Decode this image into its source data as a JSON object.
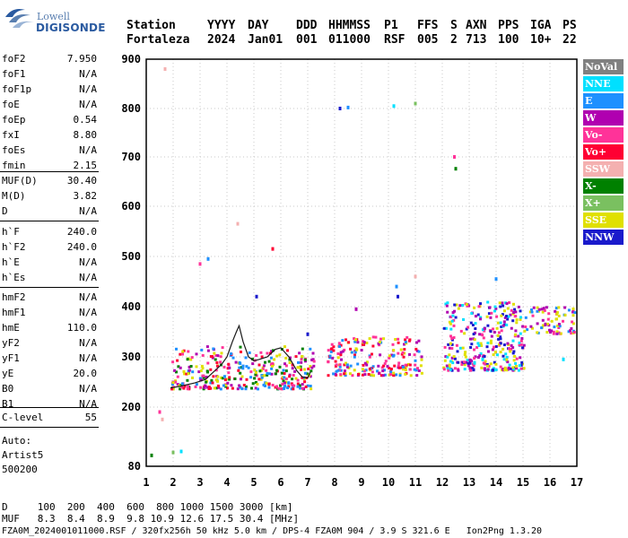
{
  "logo": {
    "top": "Lowell",
    "bottom": "DIGISONDE"
  },
  "header": {
    "row1": [
      "Station",
      "YYYY",
      "DAY",
      "DDD",
      "HHMMSS",
      "P1",
      "FFS",
      "S",
      "AXN",
      "PPS",
      "IGA",
      "PS"
    ],
    "row2": [
      "Fortaleza",
      "2024",
      "Jan01",
      "001",
      "011000",
      "RSF",
      "005",
      "2",
      "713",
      "100",
      "10+",
      "22"
    ]
  },
  "params": {
    "group1": [
      {
        "label": "foF2",
        "value": "7.950"
      },
      {
        "label": "foF1",
        "value": "N/A"
      },
      {
        "label": "foF1p",
        "value": "N/A"
      },
      {
        "label": "foE",
        "value": "N/A"
      },
      {
        "label": "foEp",
        "value": "0.54"
      },
      {
        "label": "fxI",
        "value": "8.80"
      },
      {
        "label": "foEs",
        "value": "N/A"
      },
      {
        "label": "fmin",
        "value": "2.15"
      }
    ],
    "group2": [
      {
        "label": "MUF(D)",
        "value": "30.40"
      },
      {
        "label": "M(D)",
        "value": "3.82"
      },
      {
        "label": "D",
        "value": "N/A"
      }
    ],
    "group3": [
      {
        "label": "h`F",
        "value": "240.0"
      },
      {
        "label": "h`F2",
        "value": "240.0"
      },
      {
        "label": "h`E",
        "value": "N/A"
      },
      {
        "label": "h`Es",
        "value": "N/A"
      }
    ],
    "group4": [
      {
        "label": "hmF2",
        "value": "N/A"
      },
      {
        "label": "hmF1",
        "value": "N/A"
      },
      {
        "label": "hmE",
        "value": "110.0"
      },
      {
        "label": "yF2",
        "value": "N/A"
      },
      {
        "label": "yF1",
        "value": "N/A"
      },
      {
        "label": "yE",
        "value": "20.0"
      },
      {
        "label": "B0",
        "value": "N/A"
      },
      {
        "label": "B1",
        "value": "N/A"
      }
    ],
    "clevel": {
      "label": "C-level",
      "value": "55"
    },
    "auto_lines": [
      "Auto:",
      "Artist5",
      "500200"
    ]
  },
  "legend": [
    {
      "label": "NoVal",
      "color": "#808080"
    },
    {
      "label": "NNE",
      "color": "#00e0ff"
    },
    {
      "label": "E",
      "color": "#1e90ff"
    },
    {
      "label": "W",
      "color": "#b000b0"
    },
    {
      "label": "Vo-",
      "color": "#ff3399"
    },
    {
      "label": "Vo+",
      "color": "#ff0033"
    },
    {
      "label": "SSW",
      "color": "#f4b0b0"
    },
    {
      "label": "X-",
      "color": "#008000"
    },
    {
      "label": "X+",
      "color": "#7ac060"
    },
    {
      "label": "SSE",
      "color": "#e0e000"
    },
    {
      "label": "NNW",
      "color": "#1a1acc"
    }
  ],
  "bottom": {
    "d_line": "D     100  200  400  600  800 1000 1500 3000 [km]",
    "muf_line": "MUF   8.3  8.4  8.9  9.8 10.9 12.6 17.5 30.4 [MHz]",
    "file_line": "FZA0M_2024001011000.RSF / 320fx256h 50 kHz 5.0 km / DPS-4 FZA0M 904 / 3.9 S 321.6 E   Ion2Png 1.3.20"
  },
  "chart_data": {
    "type": "scatter",
    "title": "",
    "xlabel": "",
    "ylabel": "",
    "xlim": [
      1,
      17
    ],
    "ylim": [
      80,
      900
    ],
    "x_ticks": [
      "1",
      "2",
      "3",
      "4",
      "5",
      "6",
      "7",
      "8",
      "9",
      "10",
      "11",
      "12",
      "13",
      "14",
      "15",
      "16",
      "17"
    ],
    "y_ticks": [
      "80",
      "200",
      "300",
      "400",
      "500",
      "600",
      "700",
      "800",
      "900"
    ],
    "grid": true,
    "legend_position": "right",
    "trace": [
      [
        1.9,
        238
      ],
      [
        2.3,
        242
      ],
      [
        2.8,
        248
      ],
      [
        3.2,
        255
      ],
      [
        3.5,
        270
      ],
      [
        3.8,
        285
      ],
      [
        4.0,
        300
      ],
      [
        4.2,
        330
      ],
      [
        4.35,
        350
      ],
      [
        4.45,
        362
      ],
      [
        4.6,
        330
      ],
      [
        4.8,
        300
      ],
      [
        5.0,
        292
      ],
      [
        5.2,
        295
      ],
      [
        5.5,
        300
      ],
      [
        5.8,
        315
      ],
      [
        6.0,
        318
      ],
      [
        6.3,
        300
      ],
      [
        6.6,
        272
      ],
      [
        6.8,
        260
      ],
      [
        7.0,
        258
      ],
      [
        7.1,
        270
      ]
    ],
    "echo_bands": [
      {
        "xmin": 1.9,
        "xmax": 7.2,
        "ymin": 235,
        "ymax": 320,
        "colors": [
          "#ff0033",
          "#ff3399",
          "#e0e000",
          "#1e90ff",
          "#b000b0",
          "#008000"
        ]
      },
      {
        "xmin": 7.7,
        "xmax": 11.2,
        "ymin": 262,
        "ymax": 340,
        "colors": [
          "#ff0033",
          "#ff3399",
          "#b000b0",
          "#e0e000",
          "#1e90ff"
        ]
      },
      {
        "xmin": 12.0,
        "xmax": 15.0,
        "ymin": 272,
        "ymax": 410,
        "colors": [
          "#b000b0",
          "#ff3399",
          "#e0e000",
          "#00e0ff",
          "#1a1acc"
        ]
      },
      {
        "xmin": 15.0,
        "xmax": 16.9,
        "ymin": 345,
        "ymax": 400,
        "colors": [
          "#b000b0",
          "#ff3399",
          "#e0e000",
          "#1e90ff"
        ]
      }
    ],
    "scattered_points": [
      {
        "x": 1.7,
        "y": 880,
        "color": "#f4b0b0"
      },
      {
        "x": 1.5,
        "y": 190,
        "color": "#ff3399"
      },
      {
        "x": 1.6,
        "y": 175,
        "color": "#f4b0b0"
      },
      {
        "x": 2.0,
        "y": 108,
        "color": "#7ac060"
      },
      {
        "x": 2.3,
        "y": 110,
        "color": "#00e0ff"
      },
      {
        "x": 1.2,
        "y": 102,
        "color": "#008000"
      },
      {
        "x": 8.2,
        "y": 800,
        "color": "#1a1acc"
      },
      {
        "x": 8.5,
        "y": 802,
        "color": "#1e90ff"
      },
      {
        "x": 10.2,
        "y": 805,
        "color": "#00e0ff"
      },
      {
        "x": 11.0,
        "y": 810,
        "color": "#7ac060"
      },
      {
        "x": 12.45,
        "y": 700,
        "color": "#ff3399"
      },
      {
        "x": 12.5,
        "y": 676,
        "color": "#008000"
      },
      {
        "x": 4.4,
        "y": 565,
        "color": "#f4b0b0"
      },
      {
        "x": 5.7,
        "y": 515,
        "color": "#ff0033"
      },
      {
        "x": 3.3,
        "y": 495,
        "color": "#1e90ff"
      },
      {
        "x": 3.0,
        "y": 485,
        "color": "#ff3399"
      },
      {
        "x": 10.3,
        "y": 440,
        "color": "#1e90ff"
      },
      {
        "x": 10.35,
        "y": 420,
        "color": "#1a1acc"
      },
      {
        "x": 11.0,
        "y": 460,
        "color": "#f4b0b0"
      },
      {
        "x": 14.0,
        "y": 455,
        "color": "#1e90ff"
      },
      {
        "x": 5.1,
        "y": 420,
        "color": "#1a1acc"
      },
      {
        "x": 7.0,
        "y": 345,
        "color": "#1a1acc"
      },
      {
        "x": 8.8,
        "y": 395,
        "color": "#b000b0"
      },
      {
        "x": 13.5,
        "y": 295,
        "color": "#00e0ff"
      },
      {
        "x": 16.5,
        "y": 295,
        "color": "#00e0ff"
      },
      {
        "x": 13.2,
        "y": 288,
        "color": "#00e0ff"
      }
    ]
  }
}
